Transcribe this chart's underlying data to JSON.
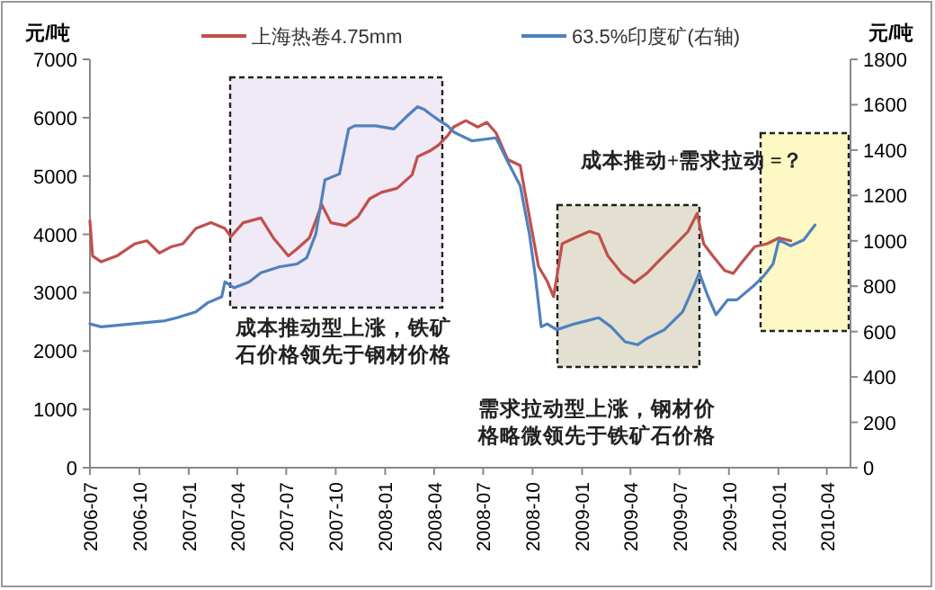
{
  "chart_data": {
    "type": "line",
    "ylabel": "元/吨",
    "y2label": "元/吨",
    "xlim": [
      "2006-07",
      "2010-05-15"
    ],
    "xticks": [
      "2006-07",
      "2006-10",
      "2007-01",
      "2007-04",
      "2007-07",
      "2007-10",
      "2008-01",
      "2008-04",
      "2008-07",
      "2008-10",
      "2009-01",
      "2009-04",
      "2009-07",
      "2009-10",
      "2010-01",
      "2010-04"
    ],
    "ylim": [
      0,
      7000
    ],
    "yticks": [
      0,
      1000,
      2000,
      3000,
      4000,
      5000,
      6000,
      7000
    ],
    "y2lim": [
      0,
      1800
    ],
    "y2ticks": [
      0,
      200,
      400,
      600,
      800,
      1000,
      1200,
      1400,
      1600,
      1800
    ],
    "legend": "top",
    "grid": false,
    "series": [
      {
        "name": "上海热卷4.75mm",
        "color": "#c0504d",
        "x": [
          "2006-07-01",
          "2006-07-06",
          "2006-07-22",
          "2006-08-20",
          "2006-09-23",
          "2006-10-15",
          "2006-11-07",
          "2006-11-30",
          "2006-12-21",
          "2007-01-14",
          "2007-02-11",
          "2007-03-09",
          "2007-03-20",
          "2007-04-12",
          "2007-05-15",
          "2007-06-07",
          "2007-07-05",
          "2007-07-21",
          "2007-08-13",
          "2007-09-05",
          "2007-09-22",
          "2007-10-19",
          "2007-11-11",
          "2007-12-03",
          "2007-12-25",
          "2008-01-23",
          "2008-02-20",
          "2008-03-01",
          "2008-03-24",
          "2008-04-09",
          "2008-04-26",
          "2008-05-07",
          "2008-05-30",
          "2008-06-21",
          "2008-07-08",
          "2008-07-25",
          "2008-08-16",
          "2008-09-08",
          "2008-09-18",
          "2008-10-12",
          "2008-10-28",
          "2008-11-09",
          "2008-11-25",
          "2008-12-18",
          "2009-01-15",
          "2009-02-01",
          "2009-02-18",
          "2009-03-16",
          "2009-04-08",
          "2009-05-01",
          "2009-05-22",
          "2009-06-25",
          "2009-07-17",
          "2009-08-03",
          "2009-08-15",
          "2009-09-01",
          "2009-09-23",
          "2009-10-09",
          "2009-10-26",
          "2009-11-18",
          "2009-12-11",
          "2010-01-02",
          "2010-01-24"
        ],
        "values": [
          4230,
          3630,
          3530,
          3630,
          3840,
          3890,
          3680,
          3790,
          3840,
          4100,
          4200,
          4100,
          3960,
          4200,
          4280,
          3940,
          3630,
          3750,
          3940,
          4510,
          4200,
          4150,
          4300,
          4610,
          4720,
          4790,
          5020,
          5330,
          5430,
          5530,
          5690,
          5840,
          5950,
          5840,
          5920,
          5740,
          5280,
          5180,
          4660,
          3450,
          3200,
          2930,
          3840,
          3940,
          4050,
          4000,
          3630,
          3330,
          3170,
          3330,
          3530,
          3840,
          4050,
          4360,
          3840,
          3630,
          3380,
          3330,
          3530,
          3790,
          3840,
          3940,
          3890
        ]
      },
      {
        "name": "63.5%印度矿(右轴)",
        "color": "#4f81bd",
        "axis": "y2",
        "x": [
          "2006-07-01",
          "2006-07-22",
          "2006-11-18",
          "2006-12-10",
          "2007-01-14",
          "2007-02-05",
          "2007-03-03",
          "2007-03-09",
          "2007-03-26",
          "2007-04-23",
          "2007-05-15",
          "2007-06-18",
          "2007-07-21",
          "2007-08-08",
          "2007-08-25",
          "2007-09-11",
          "2007-10-08",
          "2007-10-25",
          "2007-11-05",
          "2007-12-14",
          "2008-01-17",
          "2008-02-09",
          "2008-03-01",
          "2008-03-13",
          "2008-03-24",
          "2008-04-09",
          "2008-04-26",
          "2008-05-07",
          "2008-06-10",
          "2008-07-25",
          "2008-08-16",
          "2008-09-08",
          "2008-09-25",
          "2008-10-06",
          "2008-10-17",
          "2008-10-28",
          "2008-11-15",
          "2008-12-18",
          "2009-02-01",
          "2009-02-24",
          "2009-03-22",
          "2009-04-14",
          "2009-05-01",
          "2009-06-03",
          "2009-07-07",
          "2009-07-29",
          "2009-08-07",
          "2009-08-21",
          "2009-09-07",
          "2009-09-29",
          "2009-10-16",
          "2009-11-18",
          "2009-12-05",
          "2009-12-22",
          "2010-01-02",
          "2010-01-24",
          "2010-02-17",
          "2010-03-10"
        ],
        "values": [
          634,
          621,
          648,
          661,
          687,
          727,
          753,
          819,
          793,
          819,
          859,
          885,
          898,
          925,
          1031,
          1269,
          1295,
          1493,
          1507,
          1507,
          1493,
          1546,
          1591,
          1580,
          1560,
          1533,
          1507,
          1480,
          1441,
          1454,
          1348,
          1243,
          1031,
          846,
          621,
          634,
          608,
          634,
          661,
          621,
          555,
          542,
          569,
          608,
          687,
          806,
          859,
          767,
          674,
          740,
          740,
          806,
          846,
          898,
          1004,
          978,
          1004,
          1070
        ]
      }
    ],
    "annotations": [
      "成本推动型上涨，铁矿石价格领先于钢材价格",
      "需求拉动型上涨，钢材价格略微领先于铁矿石价格",
      "成本推动+需求拉动 =？"
    ]
  }
}
